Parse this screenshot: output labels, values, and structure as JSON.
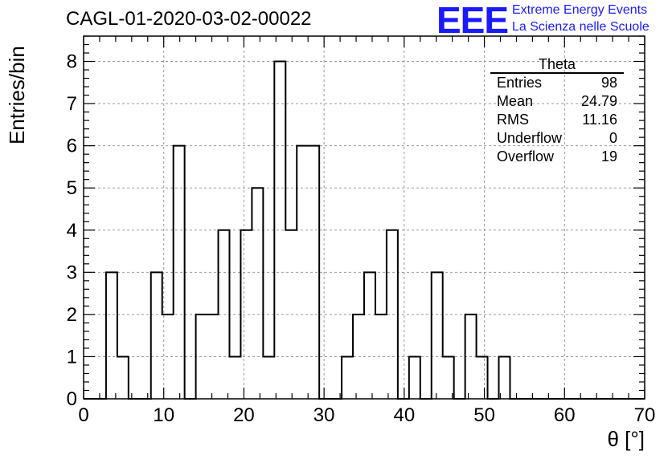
{
  "header": {
    "title": "CAGL-01-2020-03-02-00022",
    "logo": "EEE",
    "logo_line1": "Extreme Energy Events",
    "logo_line2": "La Scienza nelle Scuole"
  },
  "stats": {
    "name": "Theta",
    "rows": [
      {
        "label": "Entries",
        "value": "98"
      },
      {
        "label": "Mean",
        "value": "24.79"
      },
      {
        "label": "RMS",
        "value": "11.16"
      },
      {
        "label": "Underflow",
        "value": "0"
      },
      {
        "label": "Overflow",
        "value": "19"
      }
    ]
  },
  "colors": {
    "accent": "#1a1aff",
    "grid": "#999999",
    "line": "#000000"
  },
  "chart_data": {
    "type": "bar",
    "title": "CAGL-01-2020-03-02-00022",
    "xlabel": "θ [°]",
    "ylabel": "Entries/bin",
    "bin_width": 1.4,
    "bin_edges_start": 0,
    "values": [
      0,
      0,
      3,
      1,
      0,
      0,
      3,
      2,
      6,
      0,
      2,
      2,
      4,
      1,
      4,
      5,
      1,
      8,
      4,
      6,
      6,
      0,
      0,
      1,
      2,
      3,
      2,
      4,
      0,
      1,
      0,
      3,
      1,
      0,
      2,
      1,
      0,
      1,
      0,
      0,
      0,
      0,
      0,
      0,
      0,
      0,
      0,
      0,
      0,
      0
    ],
    "xlim": [
      0,
      70
    ],
    "ylim": [
      0,
      8.6
    ],
    "xticks": [
      "0",
      "10",
      "20",
      "30",
      "40",
      "50",
      "60",
      "70"
    ],
    "yticks": [
      "0",
      "1",
      "2",
      "3",
      "4",
      "5",
      "6",
      "7",
      "8"
    ],
    "grid": true
  }
}
